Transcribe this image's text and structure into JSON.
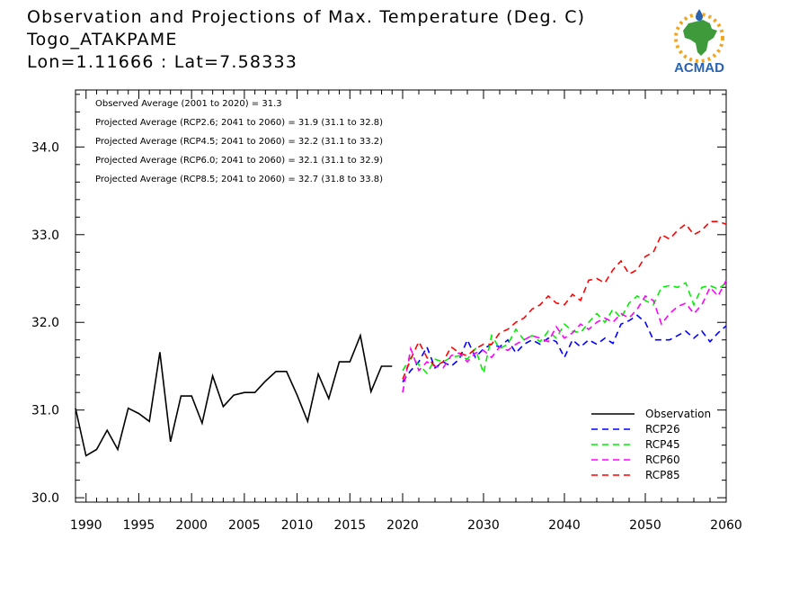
{
  "title": {
    "line1": "Observation and Projections of Max. Temperature (Deg. C)",
    "line2": "Togo_ATAKPAME",
    "line3": "Lon=1.11666 : Lat=7.58333"
  },
  "logo": {
    "text": "ACMAD",
    "color_text": "#2a62b0",
    "color_africa": "#3f9a3c",
    "color_sun": "#f1a620"
  },
  "chart_data": {
    "type": "line",
    "xlim": [
      1989,
      2060
    ],
    "ylim": [
      29.95,
      34.65
    ],
    "x_ticks": [
      1990,
      1995,
      2000,
      2005,
      2010,
      2015,
      2020,
      2030,
      2040,
      2050,
      2060
    ],
    "y_ticks": [
      30.0,
      31.0,
      32.0,
      33.0,
      34.0
    ],
    "y_tick_labels": [
      "30.0",
      "31.0",
      "32.0",
      "33.0",
      "34.0"
    ],
    "annotations": [
      "Observed Average (2001 to 2020) = 31.3",
      "Projected Average (RCP2.6; 2041 to 2060) = 31.9 (31.1 to 32.8)",
      "Projected Average (RCP4.5; 2041 to 2060) = 32.2 (31.1 to 33.2)",
      "Projected Average (RCP6.0; 2041 to 2060) = 32.1 (31.1 to 32.9)",
      "Projected Average (RCP8.5; 2041 to 2060) = 32.7 (31.8 to 33.8)"
    ],
    "legend_position": "bottom-right",
    "series": [
      {
        "name": "Observation",
        "color": "#000000",
        "dashed": false,
        "x": [
          1989,
          1990,
          1991,
          1992,
          1993,
          1994,
          1995,
          1996,
          1997,
          1998,
          1999,
          2000,
          2001,
          2002,
          2003,
          2004,
          2005,
          2006,
          2007,
          2008,
          2009,
          2010,
          2011,
          2012,
          2013,
          2014,
          2015,
          2016,
          2017,
          2018,
          2019
        ],
        "y": [
          31.02,
          30.48,
          30.55,
          30.77,
          30.55,
          31.02,
          30.96,
          30.87,
          31.66,
          30.64,
          31.16,
          31.16,
          30.85,
          31.39,
          31.04,
          31.17,
          31.2,
          31.2,
          31.33,
          31.44,
          31.44,
          31.17,
          30.87,
          31.41,
          31.13,
          31.55,
          31.55,
          31.85,
          31.21,
          31.5,
          31.5
        ]
      },
      {
        "name": "RCP26",
        "color": "#0000ff",
        "dashed": true,
        "x": [
          2020,
          2021,
          2022,
          2023,
          2024,
          2025,
          2026,
          2027,
          2028,
          2029,
          2030,
          2031,
          2032,
          2033,
          2034,
          2035,
          2036,
          2037,
          2038,
          2039,
          2040,
          2041,
          2042,
          2043,
          2044,
          2045,
          2046,
          2047,
          2048,
          2049,
          2050,
          2051,
          2052,
          2053,
          2054,
          2055,
          2056,
          2057,
          2058,
          2059,
          2060
        ],
        "y": [
          31.32,
          31.45,
          31.55,
          31.72,
          31.48,
          31.55,
          31.5,
          31.58,
          31.8,
          31.6,
          31.7,
          31.75,
          31.72,
          31.8,
          31.65,
          31.75,
          31.8,
          31.75,
          31.82,
          31.78,
          31.6,
          31.8,
          31.72,
          31.8,
          31.75,
          31.82,
          31.76,
          31.98,
          32.02,
          32.08,
          32.0,
          31.8,
          31.8,
          31.8,
          31.85,
          31.9,
          31.82,
          31.9,
          31.78,
          31.88,
          31.96
        ]
      },
      {
        "name": "RCP45",
        "color": "#00ee00",
        "dashed": true,
        "x": [
          2020,
          2021,
          2022,
          2023,
          2024,
          2025,
          2026,
          2027,
          2028,
          2029,
          2030,
          2031,
          2032,
          2033,
          2034,
          2035,
          2036,
          2037,
          2038,
          2039,
          2040,
          2041,
          2042,
          2043,
          2044,
          2045,
          2046,
          2047,
          2048,
          2049,
          2050,
          2051,
          2052,
          2053,
          2054,
          2055,
          2056,
          2057,
          2058,
          2059,
          2060
        ],
        "y": [
          31.45,
          31.6,
          31.52,
          31.42,
          31.58,
          31.55,
          31.6,
          31.62,
          31.58,
          31.7,
          31.42,
          31.85,
          31.7,
          31.75,
          31.92,
          31.8,
          31.85,
          31.78,
          31.9,
          31.82,
          31.98,
          31.9,
          31.88,
          32.0,
          32.1,
          32.0,
          32.15,
          32.05,
          32.22,
          32.3,
          32.25,
          32.2,
          32.4,
          32.42,
          32.4,
          32.45,
          32.2,
          32.4,
          32.42,
          32.38,
          32.45
        ]
      },
      {
        "name": "RCP60",
        "color": "#ff00ff",
        "dashed": true,
        "x": [
          2020,
          2021,
          2022,
          2023,
          2024,
          2025,
          2026,
          2027,
          2028,
          2029,
          2030,
          2031,
          2032,
          2033,
          2034,
          2035,
          2036,
          2037,
          2038,
          2039,
          2040,
          2041,
          2042,
          2043,
          2044,
          2045,
          2046,
          2047,
          2048,
          2049,
          2050,
          2051,
          2052,
          2053,
          2054,
          2055,
          2056,
          2057,
          2058,
          2059,
          2060
        ],
        "y": [
          31.2,
          31.7,
          31.45,
          31.55,
          31.5,
          31.48,
          31.62,
          31.65,
          31.55,
          31.65,
          31.68,
          31.6,
          31.72,
          31.68,
          31.75,
          31.8,
          31.85,
          31.82,
          31.78,
          31.95,
          31.82,
          31.88,
          31.98,
          31.92,
          32.0,
          32.05,
          32.0,
          32.1,
          32.05,
          32.15,
          32.3,
          32.25,
          31.98,
          32.1,
          32.18,
          32.22,
          32.1,
          32.2,
          32.4,
          32.3,
          32.48
        ]
      },
      {
        "name": "RCP85",
        "color": "#ff0000",
        "dashed": true,
        "x": [
          2020,
          2021,
          2022,
          2023,
          2024,
          2025,
          2026,
          2027,
          2028,
          2029,
          2030,
          2031,
          2032,
          2033,
          2034,
          2035,
          2036,
          2037,
          2038,
          2039,
          2040,
          2041,
          2042,
          2043,
          2044,
          2045,
          2046,
          2047,
          2048,
          2049,
          2050,
          2051,
          2052,
          2053,
          2054,
          2055,
          2056,
          2057,
          2058,
          2059,
          2060
        ],
        "y": [
          31.35,
          31.58,
          31.78,
          31.6,
          31.5,
          31.55,
          31.72,
          31.65,
          31.62,
          31.7,
          31.75,
          31.75,
          31.88,
          31.92,
          32.0,
          32.05,
          32.15,
          32.2,
          32.3,
          32.22,
          32.2,
          32.32,
          32.25,
          32.48,
          32.5,
          32.45,
          32.6,
          32.7,
          32.55,
          32.6,
          32.75,
          32.8,
          33.0,
          32.95,
          33.05,
          33.12,
          33.0,
          33.05,
          33.15,
          33.15,
          33.12
        ]
      }
    ]
  }
}
